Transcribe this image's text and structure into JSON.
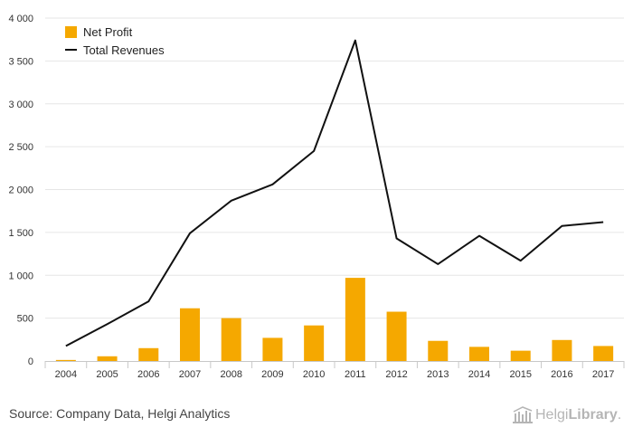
{
  "chart_data": {
    "type": "bar",
    "categories": [
      "2004",
      "2005",
      "2006",
      "2007",
      "2008",
      "2009",
      "2010",
      "2011",
      "2012",
      "2013",
      "2014",
      "2015",
      "2016",
      "2017"
    ],
    "series": [
      {
        "name": "Net Profit",
        "type": "bar",
        "color": "#f5a800",
        "values": [
          12,
          55,
          150,
          615,
          500,
          270,
          415,
          970,
          575,
          235,
          165,
          120,
          245,
          175
        ]
      },
      {
        "name": "Total Revenues",
        "type": "line",
        "color": "#111111",
        "values": [
          175,
          430,
          695,
          1490,
          1870,
          2060,
          2450,
          3740,
          1430,
          1130,
          1460,
          1170,
          1575,
          1620
        ]
      }
    ],
    "ylim": [
      0,
      4000
    ],
    "yticks": [
      0,
      500,
      1000,
      1500,
      2000,
      2500,
      3000,
      3500,
      4000
    ],
    "ytick_labels": [
      "0",
      "500",
      "1 000",
      "1 500",
      "2 000",
      "2 500",
      "3 000",
      "3 500",
      "4 000"
    ],
    "grid": true,
    "legend_position": "top-left"
  },
  "source": "Source: Company Data, Helgi Analytics",
  "logo": {
    "text_regular": "Helgi",
    "text_bold": "Library",
    "suffix": ".",
    "icon": "library-building-icon"
  }
}
